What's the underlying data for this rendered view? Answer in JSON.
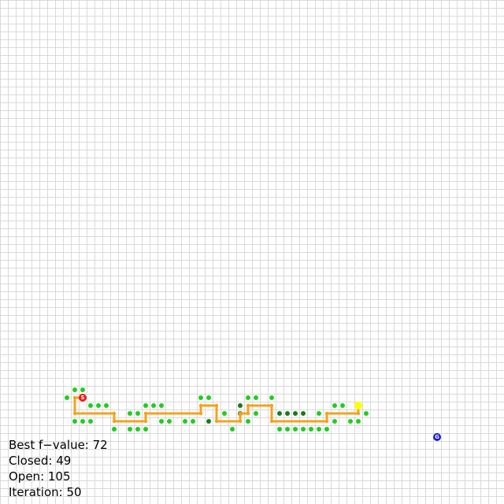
{
  "colors": {
    "background": "#ffffff",
    "grid_line": "#d9d9d9",
    "open_node": "#22cc22",
    "closed_node": "#1a7a1a",
    "path": "#f4a21a",
    "start": "#e51919",
    "current": "#ffff00",
    "goal": "#1a1ad9",
    "text": "#000000"
  },
  "grid": {
    "cell_count": 64
  },
  "markers": {
    "start_letter": "S",
    "goal_letter": "G"
  },
  "stats": {
    "best_f_label": "Best f−value: 72",
    "closed_label": "Closed: 49",
    "open_label": "Open: 105",
    "iteration_label": "Iteration: 50"
  }
}
